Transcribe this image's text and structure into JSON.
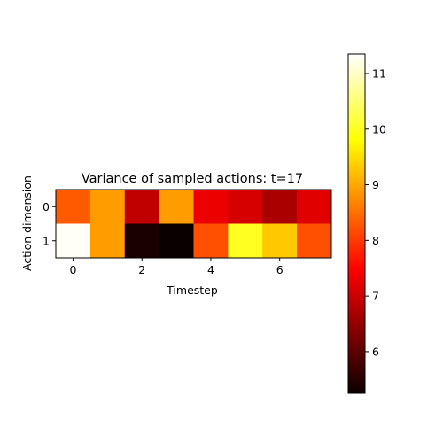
{
  "chart_data": {
    "type": "heatmap",
    "title": "Variance of sampled actions: t=17",
    "xlabel": "Timestep",
    "ylabel": "Action dimension",
    "colormap": "hot",
    "x": [
      0,
      1,
      2,
      3,
      4,
      5,
      6,
      7
    ],
    "y": [
      0,
      1
    ],
    "x_ticks": [
      0,
      2,
      4,
      6
    ],
    "y_ticks": [
      0,
      1
    ],
    "values": [
      [
        8.3,
        8.9,
        6.9,
        8.9,
        7.3,
        7.1,
        6.7,
        7.2
      ],
      [
        11.3,
        8.9,
        5.4,
        5.2,
        8.2,
        10.0,
        9.3,
        8.2
      ]
    ],
    "colorbar": {
      "range": [
        5.25,
        11.35
      ],
      "ticks": [
        6,
        7,
        8,
        9,
        10,
        11
      ]
    }
  }
}
